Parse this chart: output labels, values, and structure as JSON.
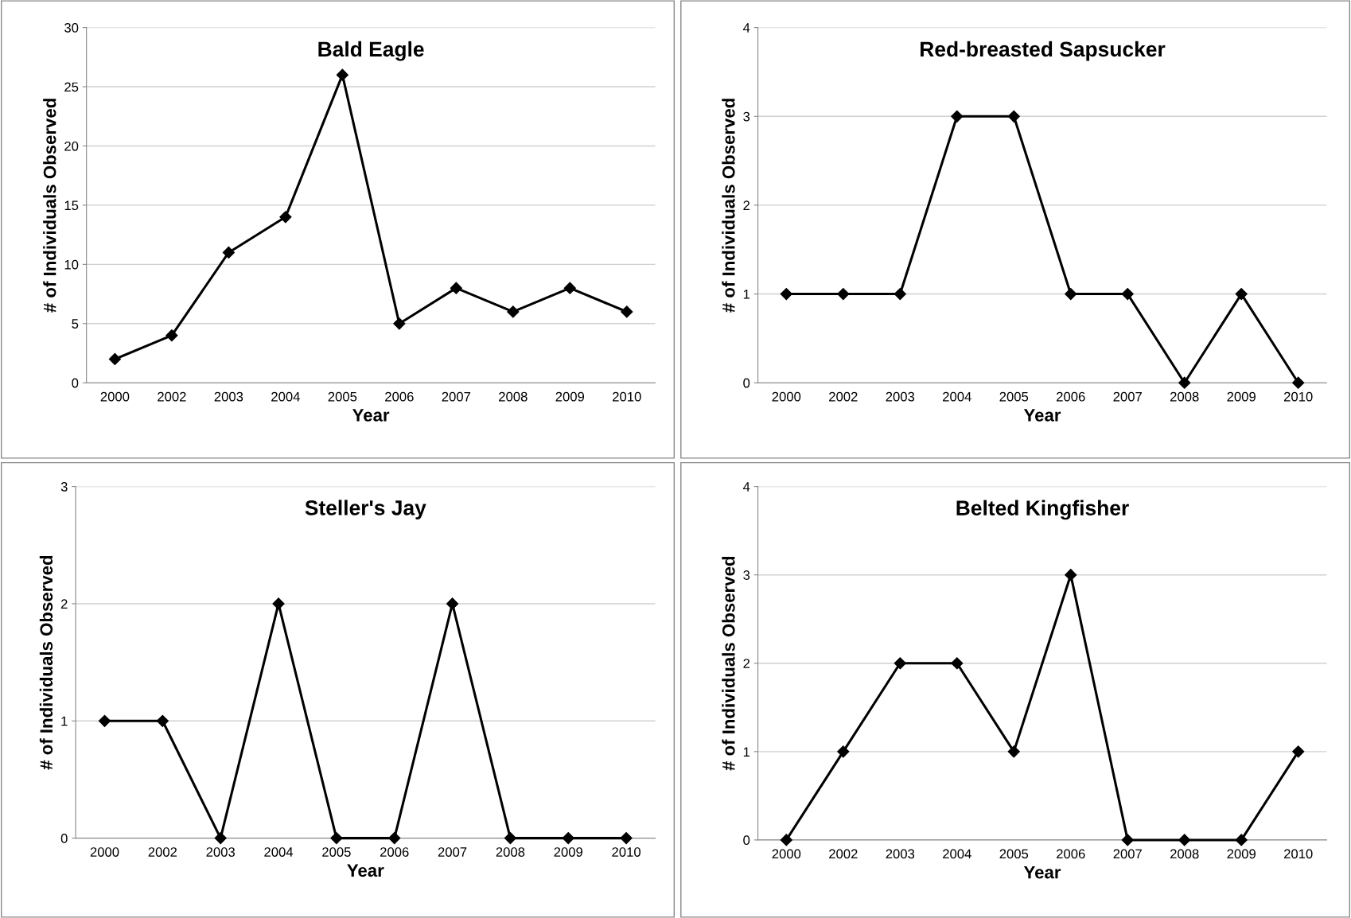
{
  "chart_data": [
    {
      "type": "line",
      "title": "Bald Eagle",
      "xlabel": "Year",
      "ylabel": "# of Individuals Observed",
      "categories": [
        "2000",
        "2002",
        "2003",
        "2004",
        "2005",
        "2006",
        "2007",
        "2008",
        "2009",
        "2010"
      ],
      "series": [
        {
          "color": "#000000",
          "values": [
            2,
            4,
            11,
            14,
            26,
            5,
            8,
            6,
            8,
            6
          ]
        }
      ],
      "ylim": [
        0,
        30
      ],
      "yticks": [
        0,
        5,
        10,
        15,
        20,
        25,
        30
      ],
      "grid": "y",
      "marker": "diamond",
      "line_style": "solid"
    },
    {
      "type": "line",
      "title": "Red-breasted Sapsucker",
      "xlabel": "Year",
      "ylabel": "# of Individuals Observed",
      "categories": [
        "2000",
        "2002",
        "2003",
        "2004",
        "2005",
        "2006",
        "2007",
        "2008",
        "2009",
        "2010"
      ],
      "series": [
        {
          "color": "#000000",
          "values": [
            1,
            1,
            1,
            3,
            3,
            1,
            1,
            0,
            1,
            0
          ]
        }
      ],
      "ylim": [
        0,
        4
      ],
      "yticks": [
        0,
        1,
        2,
        3,
        4
      ],
      "grid": "y",
      "marker": "diamond",
      "line_style": "solid"
    },
    {
      "type": "line",
      "title": "Steller's Jay",
      "xlabel": "Year",
      "ylabel": "# of Individuals Observed",
      "categories": [
        "2000",
        "2002",
        "2003",
        "2004",
        "2005",
        "2006",
        "2007",
        "2008",
        "2009",
        "2010"
      ],
      "series": [
        {
          "color": "#000000",
          "values": [
            1,
            1,
            0,
            2,
            0,
            0,
            2,
            0,
            0,
            0
          ]
        }
      ],
      "ylim": [
        0,
        3
      ],
      "yticks": [
        0,
        1,
        2,
        3
      ],
      "grid": "y",
      "marker": "diamond",
      "line_style": "solid"
    },
    {
      "type": "line",
      "title": "Belted Kingfisher",
      "xlabel": "Year",
      "ylabel": "# of Individuals Observed",
      "categories": [
        "2000",
        "2002",
        "2003",
        "2004",
        "2005",
        "2006",
        "2007",
        "2008",
        "2009",
        "2010"
      ],
      "series": [
        {
          "color": "#000000",
          "values": [
            0,
            1,
            2,
            2,
            1,
            3,
            0,
            0,
            0,
            1
          ]
        }
      ],
      "ylim": [
        0,
        4
      ],
      "yticks": [
        0,
        1,
        2,
        3,
        4
      ],
      "grid": "y",
      "marker": "diamond",
      "line_style": "solid"
    }
  ]
}
